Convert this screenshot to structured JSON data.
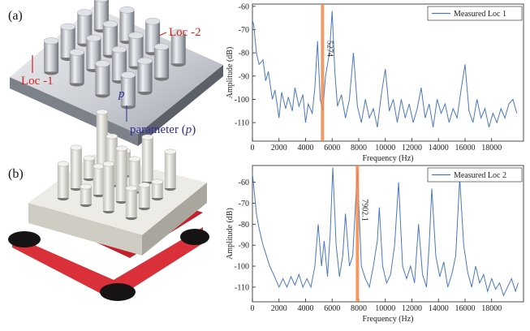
{
  "figure": {
    "panel_a": {
      "label": "(a)",
      "loc2": "Loc -2",
      "loc1": "Loc -1",
      "p": "p",
      "parameter_label": [
        "parameter (",
        "p",
        ")"
      ]
    },
    "panel_b": {
      "label": "(b)"
    }
  },
  "chart_data": [
    {
      "type": "line",
      "xlabel": "Frequency (Hz)",
      "ylabel": "Amplitude (dB)",
      "x": [
        0,
        100,
        300,
        500,
        800,
        1000,
        1200,
        1500,
        1700,
        2000,
        2200,
        2500,
        2700,
        3000,
        3200,
        3500,
        3800,
        4000,
        4200,
        4500,
        4700,
        4900,
        5100,
        5300,
        5500,
        5800,
        6000,
        6200,
        6400,
        6700,
        7000,
        7300,
        7600,
        7900,
        8200,
        8500,
        8800,
        9100,
        9400,
        9700,
        10000,
        10300,
        10600,
        10900,
        11200,
        11500,
        11800,
        12100,
        12400,
        12700,
        13000,
        13300,
        13600,
        13900,
        14200,
        14500,
        14800,
        15100,
        15400,
        15700,
        16000,
        16300,
        16600,
        16900,
        17200,
        17500,
        17800,
        18100,
        18400,
        18700,
        19000,
        19300,
        19600,
        19900
      ],
      "series": [
        {
          "name": "Measured Loc 1",
          "color": "#4a78c0",
          "values": [
            -66,
            -68,
            -80,
            -85,
            -83,
            -92,
            -88,
            -100,
            -96,
            -108,
            -97,
            -104,
            -99,
            -105,
            -95,
            -103,
            -98,
            -110,
            -102,
            -106,
            -95,
            -75,
            -100,
            -105,
            -90,
            -80,
            -62,
            -88,
            -103,
            -98,
            -108,
            -100,
            -80,
            -103,
            -110,
            -100,
            -108,
            -104,
            -112,
            -98,
            -87,
            -105,
            -100,
            -110,
            -100,
            -108,
            -102,
            -110,
            -104,
            -95,
            -108,
            -102,
            -112,
            -100,
            -106,
            -102,
            -110,
            -104,
            -108,
            -96,
            -85,
            -105,
            -110,
            -100,
            -108,
            -104,
            -112,
            -106,
            -110,
            -104,
            -108,
            -102,
            -100,
            -106
          ]
        }
      ],
      "vline": 5274,
      "vline_color": "#f0894a",
      "xlim": [
        0,
        20400
      ],
      "ylim": [
        -118,
        -59
      ],
      "xticks": [
        0,
        2000,
        4000,
        6000,
        8000,
        10000,
        12000,
        14000,
        16000,
        18000
      ],
      "yticks": [
        -110,
        -100,
        -90,
        -80,
        -70,
        -60
      ],
      "legend": "upper right"
    },
    {
      "type": "line",
      "xlabel": "Frequency (Hz)",
      "ylabel": "Amplitude (dB)",
      "x": [
        0,
        100,
        300,
        500,
        800,
        1000,
        1300,
        1600,
        2000,
        2300,
        2600,
        2900,
        3200,
        3500,
        3800,
        4100,
        4400,
        4700,
        4950,
        5200,
        5400,
        5650,
        5850,
        6050,
        6300,
        6550,
        6800,
        7000,
        7300,
        7550,
        7900,
        8200,
        8500,
        8800,
        9100,
        9400,
        9550,
        9800,
        10100,
        10400,
        10700,
        11000,
        11300,
        11600,
        11900,
        12200,
        12500,
        12800,
        13100,
        13300,
        13500,
        13800,
        14100,
        14400,
        14700,
        15000,
        15300,
        15600,
        15900,
        16200,
        16500,
        16800,
        17100,
        17400,
        17700,
        18000,
        18300,
        18600,
        18900,
        19200,
        19500,
        19800,
        20000
      ],
      "series": [
        {
          "name": "Measured Loc 2",
          "color": "#4a78c0",
          "values": [
            -56,
            -62,
            -75,
            -82,
            -90,
            -94,
            -100,
            -104,
            -110,
            -106,
            -110,
            -105,
            -109,
            -104,
            -110,
            -106,
            -110,
            -100,
            -80,
            -100,
            -88,
            -105,
            -85,
            -53,
            -90,
            -105,
            -95,
            -75,
            -100,
            -95,
            -54,
            -100,
            -106,
            -110,
            -100,
            -88,
            -72,
            -100,
            -108,
            -104,
            -90,
            -60,
            -100,
            -106,
            -100,
            -108,
            -80,
            -104,
            -110,
            -90,
            -63,
            -95,
            -105,
            -98,
            -110,
            -104,
            -95,
            -58,
            -90,
            -103,
            -110,
            -100,
            -108,
            -104,
            -112,
            -106,
            -111,
            -108,
            -114,
            -110,
            -106,
            -112,
            -108
          ]
        }
      ],
      "vline": 7902.1,
      "vline_color": "#f0894a",
      "xlim": [
        0,
        20400
      ],
      "ylim": [
        -117,
        -52
      ],
      "xticks": [
        0,
        2000,
        4000,
        6000,
        8000,
        10000,
        12000,
        14000,
        16000,
        18000
      ],
      "yticks": [
        -110,
        -100,
        -90,
        -80,
        -70,
        -60
      ],
      "legend": "upper right"
    }
  ]
}
